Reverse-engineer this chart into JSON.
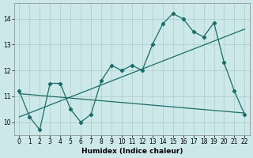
{
  "xlabel": "Humidex (Indice chaleur)",
  "bg_color": "#cce8e8",
  "grid_color": "#aacccc",
  "line_color": "#1a6e6a",
  "xlim": [
    -0.5,
    22.5
  ],
  "ylim": [
    9.5,
    14.6
  ],
  "yticks": [
    10,
    11,
    12,
    13,
    14
  ],
  "xticks": [
    0,
    1,
    2,
    3,
    4,
    5,
    6,
    7,
    8,
    9,
    10,
    11,
    12,
    13,
    14,
    15,
    16,
    17,
    18,
    19,
    20,
    21,
    22
  ],
  "curve_x": [
    0,
    1,
    2,
    3,
    4,
    5,
    6,
    7,
    8,
    9,
    10,
    11,
    12,
    13,
    14,
    15,
    16,
    17,
    18,
    19,
    20,
    21,
    22
  ],
  "curve_y": [
    11.2,
    10.2,
    9.7,
    11.5,
    11.5,
    10.5,
    10.0,
    10.3,
    11.6,
    12.2,
    12.0,
    12.2,
    12.0,
    13.0,
    13.8,
    14.2,
    14.0,
    13.5,
    13.3,
    13.85,
    12.3,
    11.2,
    10.3
  ],
  "trend1_x": [
    0,
    22
  ],
  "trend1_y": [
    10.2,
    13.6
  ],
  "trend2_x": [
    0,
    22
  ],
  "trend2_y": [
    11.1,
    10.35
  ]
}
